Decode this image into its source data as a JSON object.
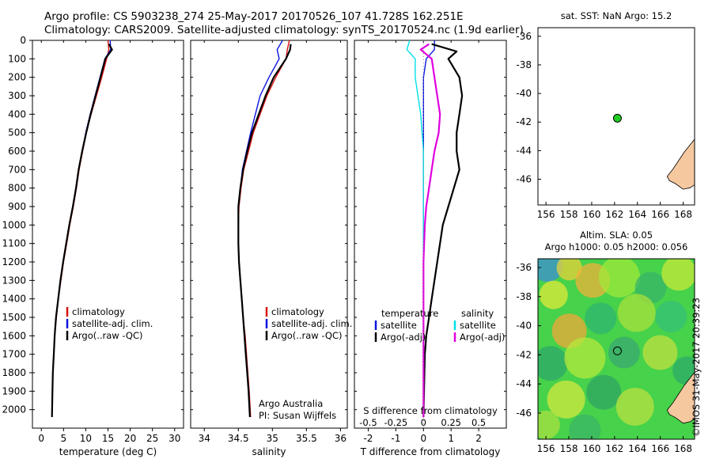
{
  "header": {
    "line1": "Argo profile: CS 5903238_274 25-May-2017 20170526_107 41.728S 162.251E",
    "line2": "Climatology: CARS2009. Satellite-adjusted climatology: synTS_20170524.nc (1.9d earlier)"
  },
  "stamp": "©IMOS 31-May-2017 20:39:23",
  "colors": {
    "climatology": "#d81010",
    "satellite": "#0a14e0",
    "argo": "#000000",
    "sat_diff_s": "#00e0e8",
    "argo_adj_s": "#e000e0",
    "float_marker": "#22cc22",
    "land": "#f5c8a0"
  },
  "chart_data": [
    {
      "type": "line",
      "id": "temperature_profile",
      "xlabel": "temperature (deg C)",
      "ylabel": "",
      "xlim": [
        -2,
        32
      ],
      "ylim": [
        2100,
        0
      ],
      "y_inverted": true,
      "xticks": [
        0,
        5,
        10,
        15,
        20,
        25,
        30
      ],
      "yticks": [
        0,
        100,
        200,
        300,
        400,
        500,
        600,
        700,
        800,
        900,
        1000,
        1100,
        1200,
        1300,
        1400,
        1500,
        1600,
        1700,
        1800,
        1900,
        2000
      ],
      "legend": [
        "climatology",
        "satellite-adj. clim.",
        "Argo(..raw -QC)"
      ],
      "series": [
        {
          "name": "climatology",
          "x": [
            15.0,
            15.2,
            14.7,
            13.6,
            12.4,
            11.2,
            10.1,
            9.3,
            8.5,
            7.9,
            7.2,
            6.4,
            5.7,
            5.0,
            4.4,
            3.8,
            3.4,
            3.0,
            2.8,
            2.6,
            2.5,
            2.4
          ],
          "y": [
            0,
            50,
            100,
            200,
            300,
            400,
            500,
            600,
            700,
            800,
            900,
            1000,
            1100,
            1200,
            1300,
            1400,
            1500,
            1600,
            1700,
            1800,
            1900,
            2040
          ]
        },
        {
          "name": "satellite-adj. clim.",
          "x": [
            15.5,
            15.6,
            14.3,
            13.2,
            12.1,
            11.0,
            10.0,
            9.2,
            8.4,
            7.8,
            7.1,
            6.3,
            5.6,
            4.9,
            4.3,
            3.8,
            3.3,
            3.0,
            2.8,
            2.6,
            2.5,
            2.4
          ],
          "y": [
            0,
            50,
            100,
            200,
            300,
            400,
            500,
            600,
            700,
            800,
            900,
            1000,
            1100,
            1200,
            1300,
            1400,
            1500,
            1600,
            1700,
            1800,
            1900,
            2040
          ]
        },
        {
          "name": "Argo(..raw -QC)",
          "x": [
            15.2,
            15.9,
            14.4,
            13.3,
            12.2,
            11.1,
            10.1,
            9.2,
            8.4,
            7.8,
            7.1,
            6.3,
            5.6,
            4.9,
            4.3,
            3.8,
            3.3,
            3.0,
            2.8,
            2.6,
            2.5,
            2.4
          ],
          "y": [
            20,
            50,
            100,
            200,
            300,
            400,
            500,
            600,
            700,
            800,
            900,
            1000,
            1100,
            1200,
            1300,
            1400,
            1500,
            1600,
            1700,
            1800,
            1900,
            2040
          ]
        }
      ]
    },
    {
      "type": "line",
      "id": "salinity_profile",
      "xlabel": "salinity",
      "ylabel": "",
      "xlim": [
        33.8,
        36.1
      ],
      "ylim": [
        2100,
        0
      ],
      "y_inverted": true,
      "xticks": [
        34,
        34.5,
        35,
        35.5,
        36
      ],
      "legend": [
        "climatology",
        "satellite-adj. clim.",
        "Argo(..raw -QC)"
      ],
      "annotation": [
        "Argo Australia",
        "PI: Susan Wijffels"
      ],
      "series": [
        {
          "name": "climatology",
          "x": [
            35.25,
            35.22,
            35.2,
            35.05,
            34.92,
            34.82,
            34.72,
            34.65,
            34.58,
            34.54,
            34.51,
            34.5,
            34.5,
            34.51,
            34.53,
            34.55,
            34.57,
            34.6,
            34.62,
            34.64,
            34.66,
            34.68
          ],
          "y": [
            0,
            50,
            100,
            200,
            300,
            400,
            500,
            600,
            700,
            800,
            900,
            1000,
            1100,
            1200,
            1300,
            1400,
            1500,
            1600,
            1700,
            1800,
            1900,
            2040
          ]
        },
        {
          "name": "satellite-adj. clim.",
          "x": [
            35.15,
            35.07,
            35.1,
            34.95,
            34.82,
            34.75,
            34.68,
            34.62,
            34.56,
            34.53,
            34.5,
            34.5,
            34.5,
            34.51,
            34.53,
            34.55,
            34.57,
            34.59,
            34.61,
            34.63,
            34.65,
            34.67
          ],
          "y": [
            0,
            50,
            100,
            200,
            300,
            400,
            500,
            600,
            700,
            800,
            900,
            1000,
            1100,
            1200,
            1300,
            1400,
            1500,
            1600,
            1700,
            1800,
            1900,
            2040
          ]
        },
        {
          "name": "Argo(..raw -QC)",
          "x": [
            35.27,
            35.26,
            35.2,
            35.02,
            34.9,
            34.8,
            34.7,
            34.63,
            34.57,
            34.53,
            34.5,
            34.5,
            34.5,
            34.51,
            34.53,
            34.55,
            34.57,
            34.59,
            34.61,
            34.63,
            34.65,
            34.67
          ],
          "y": [
            20,
            50,
            100,
            200,
            300,
            400,
            500,
            600,
            700,
            800,
            900,
            1000,
            1100,
            1200,
            1300,
            1400,
            1500,
            1600,
            1700,
            1800,
            1900,
            2040
          ]
        }
      ]
    },
    {
      "type": "line",
      "id": "difference_profile",
      "xlabel": "T difference from climatology",
      "xlabel_top": "S difference from climatology",
      "xlim": [
        -2.5,
        3.0
      ],
      "ylim": [
        2100,
        0
      ],
      "y_inverted": true,
      "xticks": [
        -2,
        -1,
        0,
        1,
        2
      ],
      "xticks_s": [
        "-0.5",
        "-0.25",
        "0",
        "0.25",
        "0.5"
      ],
      "legend_t": {
        "title": "temperature",
        "items": [
          "satellite",
          "Argo(-adj)"
        ]
      },
      "legend_s": {
        "title": "salinity",
        "items": [
          "satellite",
          "Argo(-adj)"
        ]
      },
      "series": [
        {
          "name": "temperature satellite",
          "x": [
            0.4,
            0.4,
            0.1,
            0.0,
            0.0,
            0.0,
            0.0,
            0.0,
            0.0,
            0.0,
            0.0,
            0.0,
            0.0,
            0.0,
            0.0,
            0.0,
            0.0,
            0.0,
            0.0,
            0.0
          ],
          "y": [
            0,
            50,
            100,
            200,
            300,
            400,
            500,
            600,
            700,
            800,
            900,
            1000,
            1100,
            1200,
            1300,
            1400,
            1500,
            1600,
            1700,
            2040
          ]
        },
        {
          "name": "temperature Argo(-adj)",
          "x": [
            0.3,
            1.2,
            0.9,
            1.3,
            1.4,
            1.3,
            1.2,
            1.2,
            1.3,
            1.1,
            0.9,
            0.7,
            0.6,
            0.5,
            0.4,
            0.3,
            0.2,
            0.1,
            0.05,
            0.0
          ],
          "y": [
            20,
            60,
            100,
            200,
            300,
            400,
            500,
            600,
            700,
            800,
            900,
            1000,
            1100,
            1200,
            1300,
            1400,
            1500,
            1600,
            1700,
            2040
          ]
        },
        {
          "name": "salinity satellite",
          "x": [
            -0.5,
            -0.6,
            -0.3,
            -0.3,
            -0.2,
            -0.1,
            -0.05,
            0.0,
            0.0,
            0.0,
            0.0
          ],
          "y": [
            0,
            50,
            100,
            200,
            300,
            400,
            500,
            600,
            700,
            800,
            2040
          ]
        },
        {
          "name": "salinity Argo(-adj)",
          "x": [
            0.2,
            -0.1,
            0.3,
            0.4,
            0.5,
            0.6,
            0.55,
            0.4,
            0.3,
            0.2,
            0.1,
            0.05,
            0.0,
            0.0
          ],
          "y": [
            20,
            50,
            100,
            200,
            300,
            400,
            500,
            600,
            700,
            800,
            900,
            1000,
            1200,
            2040
          ]
        }
      ]
    },
    {
      "type": "scatter",
      "id": "sst_map",
      "title": "sat. SST: NaN Argo: 15.2",
      "xlim": [
        155.3,
        169.0
      ],
      "ylim": [
        -47.8,
        -35.4
      ],
      "xticks": [
        156,
        158,
        160,
        162,
        164,
        166,
        168
      ],
      "yticks": [
        -36,
        -38,
        -40,
        -42,
        -44,
        -46
      ],
      "points": [
        {
          "lon": 162.25,
          "lat": -41.73
        }
      ]
    },
    {
      "type": "heatmap",
      "id": "sla_map",
      "title_line1": "Altim. SLA: 0.05",
      "title_line2": "Argo h1000: 0.05 h2000: 0.056",
      "xlim": [
        155.3,
        169.0
      ],
      "ylim": [
        -47.8,
        -35.4
      ],
      "xticks": [
        156,
        158,
        160,
        162,
        164,
        166,
        168
      ],
      "yticks": [
        -36,
        -38,
        -40,
        -42,
        -44,
        -46
      ],
      "points": [
        {
          "lon": 162.25,
          "lat": -41.73
        }
      ]
    }
  ]
}
